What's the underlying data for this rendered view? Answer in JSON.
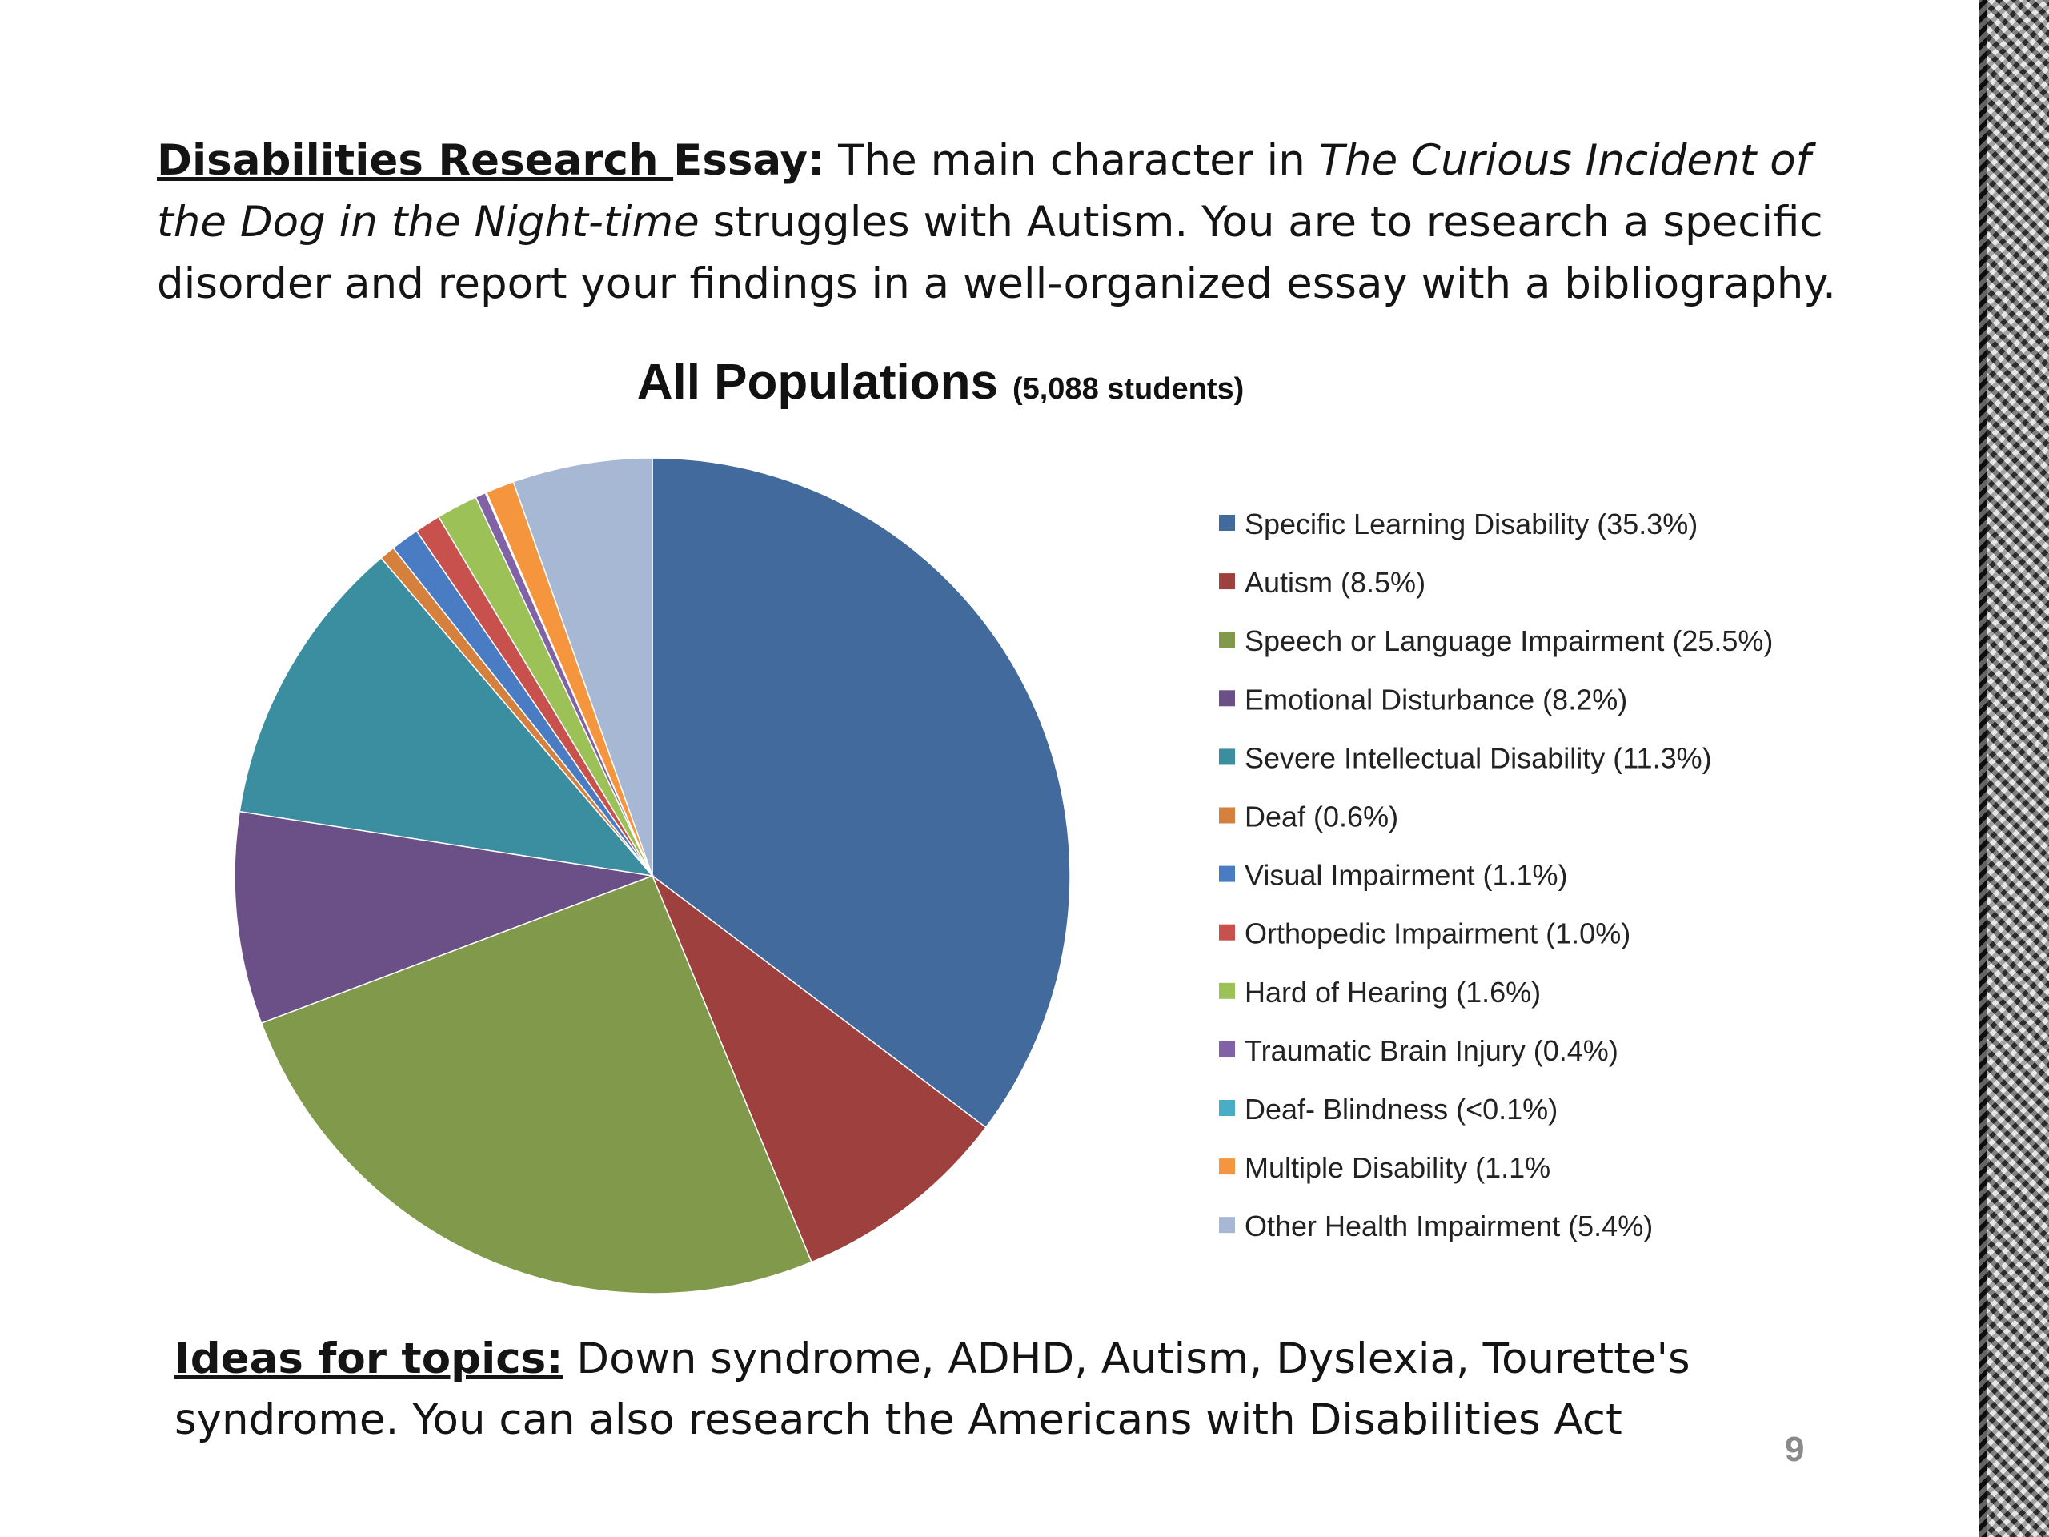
{
  "intro": {
    "heading_underlined": "Disabilities Research ",
    "heading_rest": "Essay:",
    "text_before_title": "  The main character in ",
    "book_title": "The Curious Incident of the Dog in the Night-time",
    "text_after_title": " struggles with Autism. You are to research a specific disorder and report your findings in a well-organized essay with a bibliography."
  },
  "chart_data": {
    "type": "pie",
    "title": "All Populations",
    "subtitle": "(5,088 students)",
    "legend_position": "right",
    "slices": [
      {
        "label": "Specific Learning Disability (35.3%)",
        "value": 35.3,
        "color": "#426a9c"
      },
      {
        "label": "Autism (8.5%)",
        "value": 8.5,
        "color": "#9e403e"
      },
      {
        "label": "Speech or Language Impairment (25.5%)",
        "value": 25.5,
        "color": "#80994a"
      },
      {
        "label": "Emotional Disturbance (8.2%)",
        "value": 8.2,
        "color": "#6a5087"
      },
      {
        "label": "Severe Intellectual Disability (11.3%)",
        "value": 11.3,
        "color": "#3b8da0"
      },
      {
        "label": "Deaf (0.6%)",
        "value": 0.6,
        "color": "#d5813d"
      },
      {
        "label": "Visual Impairment (1.1%)",
        "value": 1.1,
        "color": "#4a7cc4"
      },
      {
        "label": "Orthopedic Impairment (1.0%)",
        "value": 1.0,
        "color": "#c8504d"
      },
      {
        "label": "Hard of Hearing (1.6%)",
        "value": 1.6,
        "color": "#9cc157"
      },
      {
        "label": "Traumatic Brain Injury (0.4%)",
        "value": 0.4,
        "color": "#8063a6"
      },
      {
        "label": "Deaf- Blindness (<0.1%)",
        "value": 0.05,
        "color": "#49adc6"
      },
      {
        "label": "Multiple Disability (1.1%",
        "value": 1.1,
        "color": "#f5963f"
      },
      {
        "label": "Other Health Impairment (5.4%)",
        "value": 5.4,
        "color": "#a7b8d5"
      }
    ]
  },
  "ideas": {
    "label": "Ideas for topics:",
    "text": "  Down syndrome, ADHD, Autism, Dyslexia, Tourette's syndrome. You can also research the Americans with Disabilities Act"
  },
  "page_number": "9"
}
